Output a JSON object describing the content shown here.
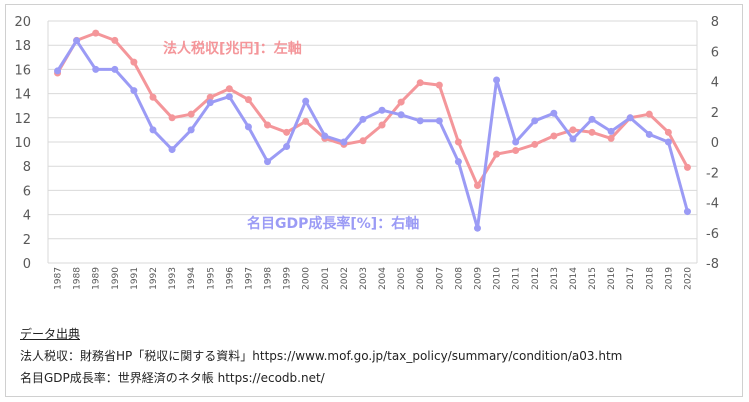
{
  "chart_data": {
    "type": "line",
    "x": [
      "1987",
      "1988",
      "1989",
      "1990",
      "1991",
      "1992",
      "1993",
      "1994",
      "1995",
      "1996",
      "1997",
      "1998",
      "1999",
      "2000",
      "2001",
      "2002",
      "2003",
      "2004",
      "2005",
      "2006",
      "2007",
      "2008",
      "2009",
      "2010",
      "2011",
      "2012",
      "2013",
      "2014",
      "2015",
      "2016",
      "2017",
      "2018",
      "2019",
      "2020"
    ],
    "y_left": {
      "min": 0,
      "max": 20,
      "step": 2,
      "ticks": [
        "0",
        "2",
        "4",
        "6",
        "8",
        "10",
        "12",
        "14",
        "16",
        "18",
        "20"
      ]
    },
    "y_right": {
      "min": -8,
      "max": 8,
      "step": 2,
      "ticks": [
        "-8",
        "-6",
        "-4",
        "-2",
        "0",
        "2",
        "4",
        "6",
        "8"
      ]
    },
    "grid": true,
    "series": [
      {
        "name": "法人税収[兆円]：左軸",
        "axis": "left",
        "color": "#F4969A",
        "values": [
          15.7,
          18.4,
          19.0,
          18.4,
          16.6,
          13.7,
          12.0,
          12.3,
          13.7,
          14.4,
          13.5,
          11.4,
          10.8,
          11.7,
          10.3,
          9.8,
          10.1,
          11.4,
          13.3,
          14.9,
          14.7,
          10.0,
          6.4,
          9.0,
          9.3,
          9.8,
          10.5,
          11.0,
          10.8,
          10.3,
          12.0,
          12.3,
          10.8,
          7.9
        ]
      },
      {
        "name": "名目GDP成長率[%]：右軸",
        "axis": "right",
        "color": "#9B9BF5",
        "values": [
          4.7,
          6.7,
          4.8,
          4.8,
          3.4,
          0.8,
          -0.5,
          0.8,
          2.6,
          3.0,
          1.0,
          -1.3,
          -0.3,
          2.7,
          0.4,
          0.0,
          1.5,
          2.1,
          1.8,
          1.4,
          1.4,
          -1.3,
          -5.7,
          4.1,
          0.0,
          1.4,
          1.9,
          0.2,
          1.5,
          0.7,
          1.6,
          0.5,
          0.0,
          -4.6
        ]
      }
    ]
  },
  "source": {
    "heading": "データ出典",
    "line1": "法人税収：財務省HP「税収に関する資料」https://www.mof.go.jp/tax_policy/summary/condition/a03.htm",
    "line2": "名目GDP成長率：世界経済のネタ帳 https://ecodb.net/"
  }
}
